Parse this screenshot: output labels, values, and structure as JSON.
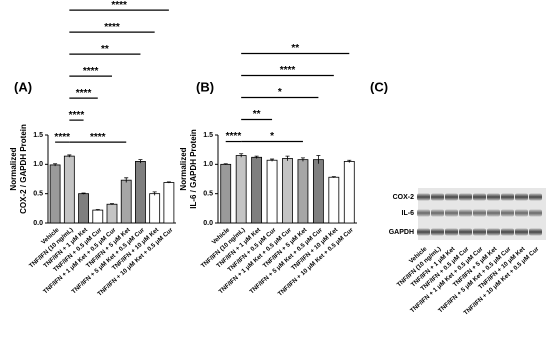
{
  "chart_data": [
    {
      "type": "bar",
      "label": "(A)",
      "ylabel": [
        "Normalized",
        "COX-2 / GAPDH Protein"
      ],
      "categories": [
        "Vehicle",
        "TNF/IFN (10 ng/mL)",
        "TNF/IFN + 1 μM Ket",
        "TNF/IFN + 0.5 μM Cur",
        "TNF/IFN + 1 μM Ket + 0.5 μM Cur",
        "TNF/IFN + 5 μM Ket",
        "TNF/IFN + 5 μM Ket + 0.5 μM Cur",
        "TNF/IFN + 10 μM Ket",
        "TNF/IFN + 10 μM Ket + 0.5 μM Cur"
      ],
      "values": [
        0.99,
        1.14,
        0.5,
        0.22,
        0.32,
        0.73,
        1.05,
        0.5,
        0.69
      ],
      "errors": [
        0.02,
        0.02,
        0.01,
        0.01,
        0.01,
        0.04,
        0.03,
        0.03,
        0.01
      ],
      "colors": [
        "#9a9a9a",
        "#c4c4c4",
        "#7f7f7f",
        "#ffffff",
        "#c4c4c4",
        "#a6a6a6",
        "#7f7f7f",
        "#ffffff",
        "#ffffff"
      ],
      "ylim": [
        0,
        1.5
      ],
      "yticks": [
        {
          "value": 0,
          "label": "0.0"
        },
        0.5,
        {
          "value": 1,
          "label": "1.0"
        },
        1.5
      ],
      "brackets": [
        [
          {
            "label": "****",
            "start": 1,
            "end": 8
          }
        ],
        [
          {
            "label": "****",
            "start": 1,
            "end": 7
          }
        ],
        [
          {
            "label": "**",
            "start": 1,
            "end": 6
          }
        ],
        [
          {
            "label": "****",
            "start": 1,
            "end": 4
          }
        ],
        [
          {
            "label": "****",
            "start": 1,
            "end": 3
          }
        ],
        [
          {
            "label": "****",
            "start": 1,
            "end": 2
          }
        ],
        [
          {
            "label": "****",
            "start": 0,
            "end": 1
          },
          {
            "label": "****",
            "start": 1,
            "end": 5
          }
        ]
      ]
    },
    {
      "type": "bar",
      "label": "(B)",
      "ylabel": [
        "Normalized",
        "IL-6 / GAPDH Protein"
      ],
      "categories": [
        "Vehicle",
        "TNF/IFN (10 ng/mL)",
        "TNF/IFN + 1 μM Ket",
        "TNF/IFN + 0.5 μM Cur",
        "TNF/IFN + 1 μM Ket + 0.5 μM Cur",
        "TNF/IFN + 5 μM Ket",
        "TNF/IFN + 5 μM Ket + 0.5 μM Cur",
        "TNF/IFN + 10 μM Ket",
        "TNF/IFN + 10 μM Ket + 0.5 μM Cur"
      ],
      "values": [
        1.0,
        1.15,
        1.12,
        1.07,
        1.1,
        1.08,
        1.08,
        0.78,
        1.05
      ],
      "errors": [
        0.01,
        0.03,
        0.02,
        0.02,
        0.04,
        0.03,
        0.07,
        0.01,
        0.02
      ],
      "colors": [
        "#9a9a9a",
        "#c4c4c4",
        "#7f7f7f",
        "#ffffff",
        "#c4c4c4",
        "#a6a6a6",
        "#7f7f7f",
        "#ffffff",
        "#ffffff"
      ],
      "ylim": [
        0,
        1.5
      ],
      "yticks": [
        {
          "value": 0,
          "label": "0.0"
        },
        0.5,
        {
          "value": 1,
          "label": "1.0"
        },
        1.5
      ],
      "brackets": [
        [
          {
            "label": "**",
            "start": 1,
            "end": 8
          }
        ],
        [
          {
            "label": "****",
            "start": 1,
            "end": 7
          }
        ],
        [
          {
            "label": "*",
            "start": 1,
            "end": 6
          }
        ],
        [
          {
            "label": "**",
            "start": 1,
            "end": 3
          }
        ],
        [
          {
            "label": "****",
            "start": 0,
            "end": 1
          },
          {
            "label": "*",
            "start": 1,
            "end": 5
          }
        ]
      ]
    }
  ],
  "blot": {
    "label": "(C)",
    "rows": [
      "COX-2",
      "IL-6",
      "GAPDH"
    ],
    "lanes": [
      "Vehicle",
      "TNF/IFN (10 ng/mL)",
      "TNF/IFN + 1 μM Ket",
      "TNF/IFN + 0.5 μM Cur",
      "TNF/IFN + 1 μM Ket + 0.5 μM Cur",
      "TNF/IFN + 5 μM Ket",
      "TNF/IFN + 5 μM Ket + 0.5 μM Cur",
      "TNF/IFN + 10 μM Ket",
      "TNF/IFN + 10 μM Ket + 0.5 μM Cur"
    ]
  }
}
